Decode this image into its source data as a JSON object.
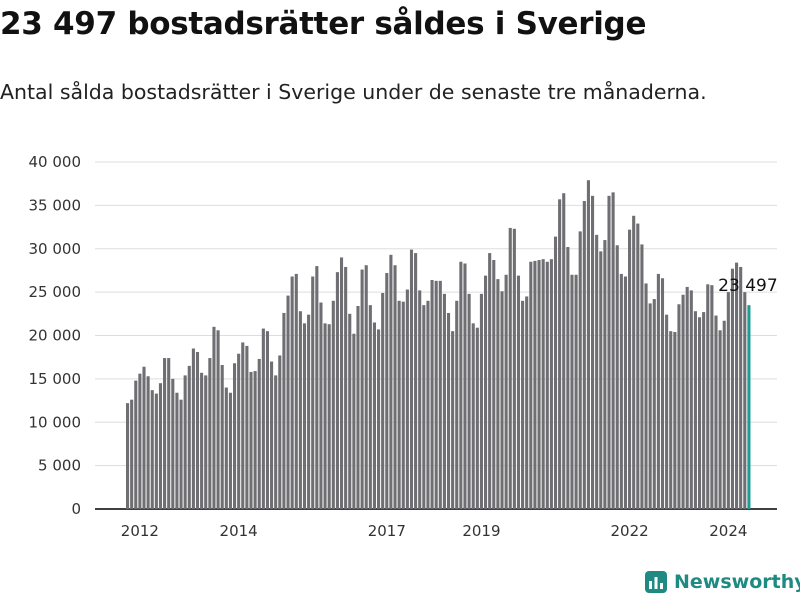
{
  "header": {
    "title": "23 497 bostadsrätter såldes i Sverige",
    "subtitle": "Antal sålda bostadsrätter i Sverige under de senaste tre månaderna."
  },
  "brand": {
    "name": "Newsworthy",
    "icon": "newsworthy-logo-icon",
    "color": "#1f8a82"
  },
  "colors": {
    "bar": "#6e6e73",
    "highlight": "#1a9e96",
    "grid": "#dddddd",
    "axis": "#000000"
  },
  "chart_data": {
    "type": "bar",
    "xlabel": "",
    "ylabel": "",
    "ylim": [
      0,
      40000
    ],
    "y_ticks": [
      0,
      5000,
      10000,
      15000,
      20000,
      25000,
      30000,
      35000,
      40000
    ],
    "y_tick_labels": [
      "0",
      "5 000",
      "10 000",
      "15 000",
      "20 000",
      "25 000",
      "30 000",
      "35 000",
      "40 000"
    ],
    "x_tick_labels": [
      "2012",
      "2014",
      "2017",
      "2019",
      "2022",
      "2024"
    ],
    "x_tick_positions": [
      3,
      27,
      63,
      86,
      122,
      146
    ],
    "grid": true,
    "legend": "none",
    "highlight_index": 151,
    "highlight_label": "23 497",
    "values": [
      12200,
      12600,
      14800,
      15600,
      16400,
      15300,
      13700,
      13300,
      14500,
      17400,
      17400,
      15000,
      13400,
      12600,
      15400,
      16500,
      18500,
      18100,
      15700,
      15400,
      17400,
      21000,
      20600,
      16600,
      14000,
      13400,
      16800,
      17900,
      19200,
      18800,
      15800,
      15900,
      17300,
      20800,
      20500,
      17000,
      15400,
      17700,
      22600,
      24600,
      26800,
      27100,
      22800,
      21400,
      22400,
      26800,
      28000,
      23800,
      21400,
      21300,
      24000,
      27300,
      29000,
      27900,
      22500,
      20200,
      23400,
      27600,
      28100,
      23500,
      21500,
      20700,
      24900,
      27200,
      29300,
      28100,
      24000,
      23900,
      25300,
      29900,
      29500,
      25200,
      23500,
      24000,
      26400,
      26300,
      26300,
      24800,
      22600,
      20500,
      24000,
      28500,
      28300,
      24800,
      21400,
      20900,
      24800,
      26900,
      29500,
      28700,
      26500,
      25100,
      27000,
      32400,
      32300,
      26900,
      24000,
      24500,
      28500,
      28600,
      28700,
      28800,
      28500,
      28800,
      31400,
      35700,
      36400,
      30200,
      27000,
      27000,
      32000,
      35500,
      37900,
      36100,
      31600,
      29700,
      31000,
      36100,
      36500,
      30400,
      27100,
      26800,
      32200,
      33800,
      32900,
      30500,
      26000,
      23700,
      24200,
      27100,
      26600,
      22400,
      20500,
      20400,
      23600,
      24700,
      25600,
      25200,
      22800,
      22100,
      22700,
      25900,
      25800,
      22300,
      20600,
      21700,
      25000,
      27700,
      28400,
      27900,
      25000,
      23497
    ]
  }
}
